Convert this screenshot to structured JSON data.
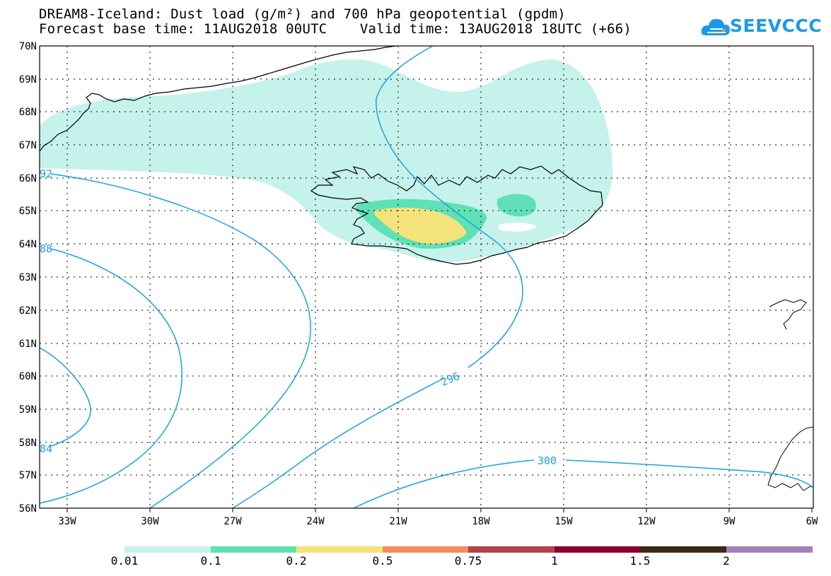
{
  "header": {
    "title_line1": "DREAM8-Iceland: Dust load (g/m²) and 700 hPa geopotential (gpdm)",
    "title_line2": "Forecast base time: 11AUG2018 00UTC    Valid time: 13AUG2018 18UTC (+66)",
    "logo_text": "SEEVCCC"
  },
  "map": {
    "lon_labels": [
      "33W",
      "30W",
      "27W",
      "24W",
      "21W",
      "18W",
      "15W",
      "12W",
      "9W",
      "6W"
    ],
    "lat_labels": [
      "70N",
      "69N",
      "68N",
      "67N",
      "66N",
      "65N",
      "64N",
      "63N",
      "62N",
      "61N",
      "60N",
      "59N",
      "58N",
      "57N",
      "56N"
    ],
    "contour_labels": [
      "92",
      "88",
      "84",
      "296",
      "300"
    ],
    "colors": {
      "contour": "#1ca0e6",
      "dust_0_01": "#c5f2ea",
      "dust_0_1": "#5fe0b6",
      "dust_0_2": "#f4e27a"
    }
  },
  "colorbar": {
    "labels": [
      "0.01",
      "0.1",
      "0.2",
      "0.5",
      "0.75",
      "1",
      "1.5",
      "2"
    ],
    "colors": [
      "#c5f2ea",
      "#5fe0b6",
      "#f4e27a",
      "#ef8f5e",
      "#b0434b",
      "#8a0030",
      "#3b2a1a",
      "#a57fb5"
    ]
  }
}
